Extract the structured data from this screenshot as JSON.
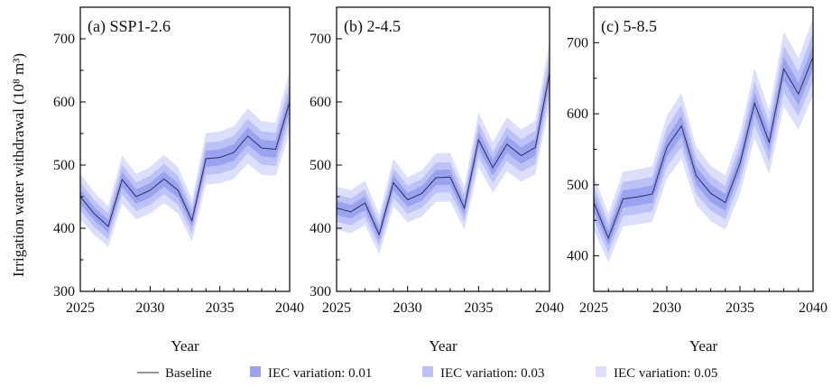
{
  "figure": {
    "ylabel": "Irrigation water withdrawal (10⁸ m³)",
    "xlabel": "Year"
  },
  "colors": {
    "band_005": "#dcdffb",
    "band_003": "#bcc2f6",
    "band_001": "#9aa3ef",
    "baseline": "#2b2d5a",
    "axis": "#000000"
  },
  "legend": {
    "placement": "bottom",
    "items": [
      {
        "label": "Baseline",
        "kind": "line",
        "color_key": "baseline"
      },
      {
        "label": "IEC variation: 0.01",
        "kind": "patch",
        "color_key": "band_001"
      },
      {
        "label": "IEC variation: 0.03",
        "kind": "patch",
        "color_key": "band_003"
      },
      {
        "label": "IEC variation: 0.05",
        "kind": "patch",
        "color_key": "band_005"
      }
    ]
  },
  "chart_data": [
    {
      "type": "area",
      "title": "(a) SSP1-2.6",
      "xlabel": "Year",
      "ylabel": "Irrigation water withdrawal (10⁸ m³)",
      "xlim": [
        2025,
        2040
      ],
      "ylim": [
        300,
        750
      ],
      "xticks": [
        2025,
        2030,
        2035,
        2040
      ],
      "yticks": [
        300,
        400,
        500,
        600,
        700
      ],
      "grid": false,
      "x": [
        2025,
        2026,
        2027,
        2028,
        2029,
        2030,
        2031,
        2032,
        2033,
        2034,
        2035,
        2036,
        2037,
        2038,
        2039,
        2040
      ],
      "series": [
        {
          "name": "Baseline",
          "values": [
            450,
            423,
            403,
            477,
            450,
            460,
            478,
            460,
            412,
            510,
            512,
            520,
            546,
            527,
            525,
            600
          ]
        }
      ],
      "bands": [
        {
          "name": "IEC variation: 0.05",
          "relative": 0.08
        },
        {
          "name": "IEC variation: 0.03",
          "relative": 0.05
        },
        {
          "name": "IEC variation: 0.01",
          "relative": 0.025
        }
      ]
    },
    {
      "type": "area",
      "title": "(b) 2-4.5",
      "xlabel": "Year",
      "ylabel": "",
      "xlim": [
        2025,
        2040
      ],
      "ylim": [
        300,
        750
      ],
      "xticks": [
        2025,
        2030,
        2035,
        2040
      ],
      "yticks": [
        300,
        400,
        500,
        600,
        700
      ],
      "grid": false,
      "x": [
        2025,
        2026,
        2027,
        2028,
        2029,
        2030,
        2031,
        2032,
        2033,
        2034,
        2035,
        2036,
        2037,
        2038,
        2039,
        2040
      ],
      "series": [
        {
          "name": "Baseline",
          "values": [
            432,
            426,
            440,
            390,
            472,
            445,
            455,
            480,
            481,
            432,
            540,
            496,
            533,
            515,
            528,
            645
          ]
        }
      ],
      "bands": [
        {
          "name": "IEC variation: 0.05",
          "relative": 0.08
        },
        {
          "name": "IEC variation: 0.03",
          "relative": 0.05
        },
        {
          "name": "IEC variation: 0.01",
          "relative": 0.025
        }
      ]
    },
    {
      "type": "area",
      "title": "(c) 5-8.5",
      "xlabel": "Year",
      "ylabel": "",
      "xlim": [
        2025,
        2040
      ],
      "ylim": [
        350,
        750
      ],
      "xticks": [
        2025,
        2030,
        2035,
        2040
      ],
      "yticks": [
        400,
        500,
        600,
        700
      ],
      "grid": false,
      "x": [
        2025,
        2026,
        2027,
        2028,
        2029,
        2030,
        2031,
        2032,
        2033,
        2034,
        2035,
        2036,
        2037,
        2038,
        2039,
        2040
      ],
      "series": [
        {
          "name": "Baseline",
          "values": [
            475,
            425,
            480,
            483,
            487,
            553,
            583,
            513,
            488,
            475,
            530,
            615,
            560,
            663,
            628,
            680
          ]
        }
      ],
      "bands": [
        {
          "name": "IEC variation: 0.05",
          "relative": 0.08
        },
        {
          "name": "IEC variation: 0.03",
          "relative": 0.05
        },
        {
          "name": "IEC variation: 0.01",
          "relative": 0.025
        }
      ]
    }
  ]
}
